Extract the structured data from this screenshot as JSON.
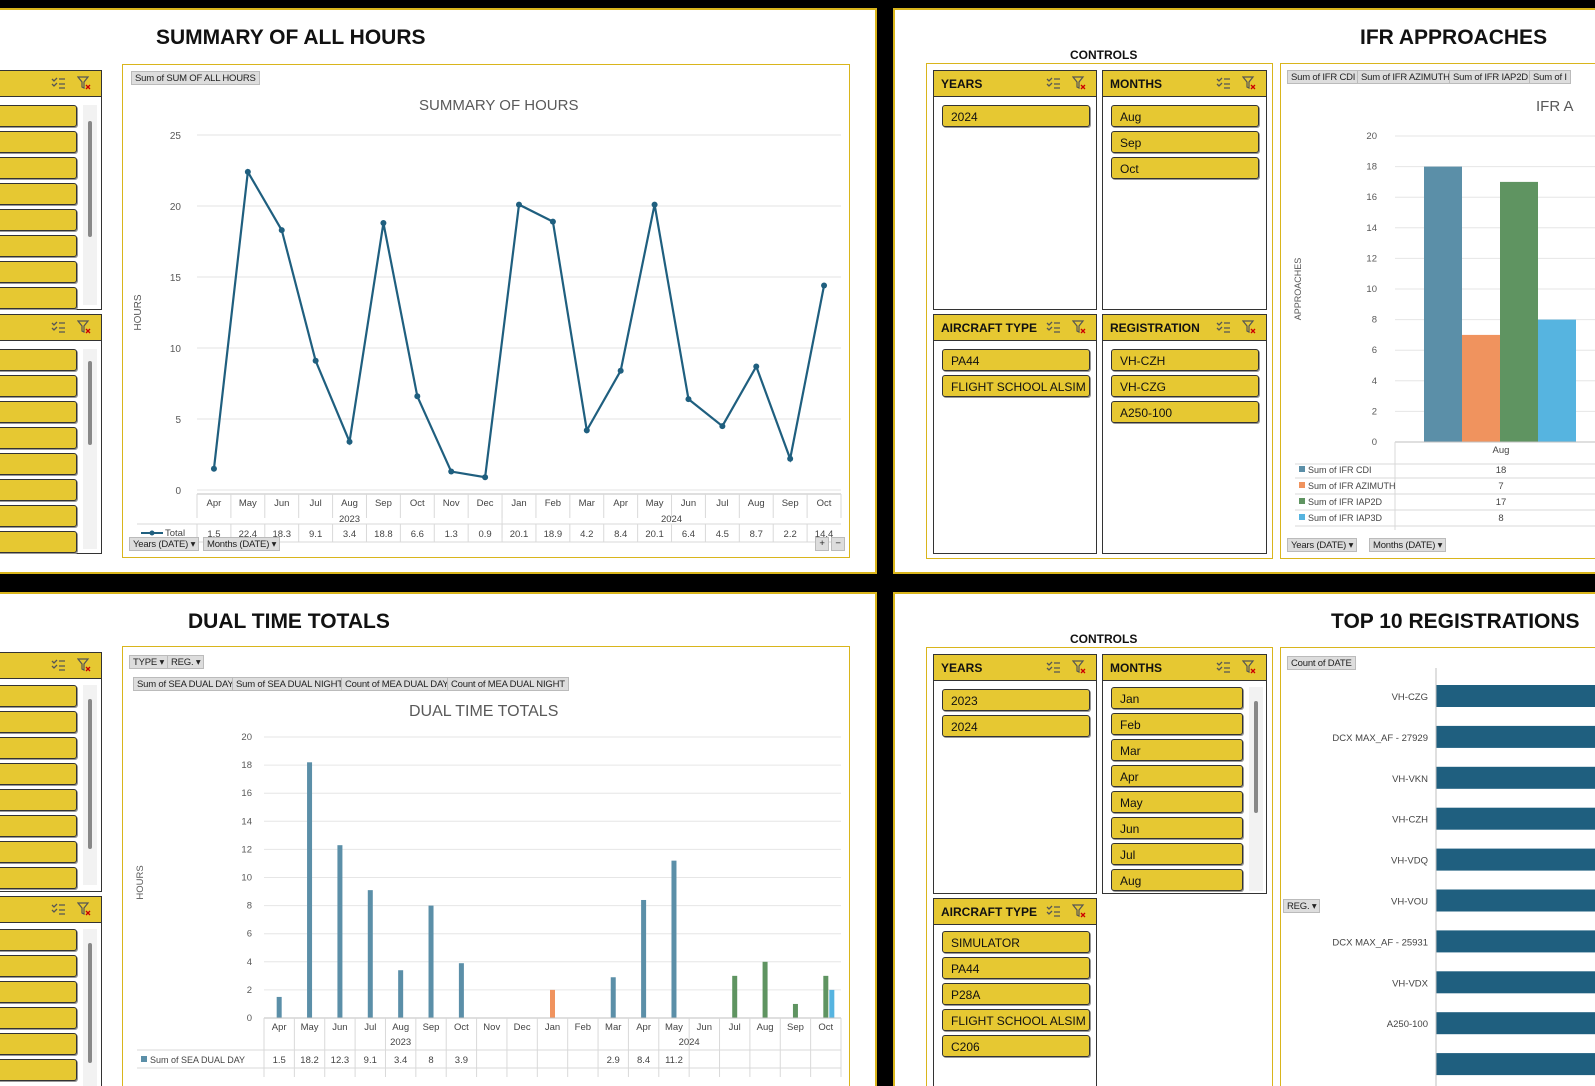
{
  "panels": {
    "summary": {
      "title": "SUMMARY OF ALL HOURS",
      "field_tag": "Sum of SUM OF ALL HOURS",
      "axis_buttons": [
        "Years (DATE)",
        "Months (DATE)"
      ]
    },
    "ifr": {
      "title": "IFR APPROACHES",
      "controls_label": "CONTROLS",
      "field_tags": [
        "Sum of IFR CDI",
        "Sum of IFR AZIMUTH",
        "Sum of IFR IAP2D",
        "Sum of I"
      ],
      "axis_buttons": [
        "Years (DATE)",
        "Months (DATE)"
      ],
      "slicers": {
        "years": {
          "label": "YEARS",
          "items": [
            "2024"
          ]
        },
        "months": {
          "label": "MONTHS",
          "items": [
            "Aug",
            "Sep",
            "Oct"
          ]
        },
        "aircraft": {
          "label": "AIRCRAFT TYPE",
          "items": [
            "PA44",
            "FLIGHT SCHOOL ALSIM"
          ]
        },
        "registration": {
          "label": "REGISTRATION",
          "items": [
            "VH-CZH",
            "VH-CZG",
            "A250-100"
          ]
        }
      }
    },
    "dual": {
      "title": "DUAL TIME TOTALS",
      "filter_buttons": [
        "TYPE",
        "REG."
      ],
      "field_tags": [
        "Sum of SEA DUAL DAY",
        "Sum of SEA DUAL NIGHT",
        "Count of MEA DUAL DAY",
        "Count of MEA DUAL NIGHT"
      ]
    },
    "top10": {
      "title": "TOP 10 REGISTRATIONS",
      "controls_label": "CONTROLS",
      "field_tag": "Count of DATE",
      "reg_button": "REG.",
      "slicers": {
        "years": {
          "label": "YEARS",
          "items": [
            "2023",
            "2024"
          ]
        },
        "months": {
          "label": "MONTHS",
          "items": [
            "Jan",
            "Feb",
            "Mar",
            "Apr",
            "May",
            "Jun",
            "Jul",
            "Aug"
          ]
        },
        "aircraft": {
          "label": "AIRCRAFT TYPE",
          "items": [
            "SIMULATOR",
            "PA44",
            "P28A",
            "FLIGHT SCHOOL ALSIM",
            "C206"
          ]
        }
      }
    }
  },
  "colors": {
    "accent": "#e6c832",
    "line": "#1f5f7f",
    "cdi": "#5b8fa8",
    "azimuth": "#f0935e",
    "iap2d": "#5f9461",
    "iap3d": "#56b4e0",
    "sea_day": "#5b8fa8",
    "bar_top10": "#1f5f7f"
  },
  "chart_data": [
    {
      "id": "summary",
      "type": "line",
      "title": "SUMMARY OF HOURS",
      "ylabel": "HOURS",
      "ylim": [
        0,
        25
      ],
      "yticks": [
        0,
        5,
        10,
        15,
        20,
        25
      ],
      "categories": [
        "Apr",
        "May",
        "Jun",
        "Jul",
        "Aug",
        "Sep",
        "Oct",
        "Nov",
        "Dec",
        "Jan",
        "Feb",
        "Mar",
        "Apr",
        "May",
        "Jun",
        "Jul",
        "Aug",
        "Sep",
        "Oct"
      ],
      "year_groups": [
        {
          "label": "2023",
          "count": 9
        },
        {
          "label": "2024",
          "count": 10
        }
      ],
      "series": [
        {
          "name": "Total",
          "values": [
            1.5,
            22.4,
            18.3,
            9.1,
            3.4,
            18.8,
            6.6,
            1.3,
            0.9,
            20.1,
            18.9,
            4.2,
            8.4,
            20.1,
            6.4,
            4.5,
            8.7,
            2.2,
            14.4
          ]
        }
      ]
    },
    {
      "id": "ifr",
      "type": "bar",
      "title": "IFR A",
      "ylabel": "APPROACHES",
      "ylim": [
        0,
        20
      ],
      "yticks": [
        0,
        2,
        4,
        6,
        8,
        10,
        12,
        14,
        16,
        18,
        20
      ],
      "categories": [
        "Aug"
      ],
      "series": [
        {
          "name": "Sum of IFR CDI",
          "values": [
            18
          ]
        },
        {
          "name": "Sum of IFR AZIMUTH",
          "values": [
            7
          ]
        },
        {
          "name": "Sum of IFR IAP2D",
          "values": [
            17
          ]
        },
        {
          "name": "Sum of IFR IAP3D",
          "values": [
            8
          ]
        }
      ]
    },
    {
      "id": "dual",
      "type": "bar",
      "title": "DUAL TIME TOTALS",
      "ylabel": "HOURS",
      "ylim": [
        0,
        20
      ],
      "yticks": [
        0,
        2,
        4,
        6,
        8,
        10,
        12,
        14,
        16,
        18,
        20
      ],
      "categories": [
        "Apr",
        "May",
        "Jun",
        "Jul",
        "Aug",
        "Sep",
        "Oct",
        "Nov",
        "Dec",
        "Jan",
        "Feb",
        "Mar",
        "Apr",
        "May",
        "Jun",
        "Jul",
        "Aug",
        "Sep",
        "Oct"
      ],
      "year_groups": [
        {
          "label": "2023",
          "count": 9
        },
        {
          "label": "2024",
          "count": 10
        }
      ],
      "series": [
        {
          "name": "Sum of SEA DUAL DAY",
          "values": [
            1.5,
            18.2,
            12.3,
            9.1,
            3.4,
            8,
            3.9,
            null,
            null,
            null,
            null,
            2.9,
            8.4,
            11.2,
            null,
            null,
            null,
            null,
            null
          ]
        },
        {
          "name": "Sum of SEA DUAL NIGHT",
          "values": [
            null,
            null,
            null,
            null,
            null,
            null,
            null,
            null,
            null,
            2,
            null,
            null,
            null,
            null,
            null,
            null,
            null,
            null,
            null
          ]
        },
        {
          "name": "Count of MEA DUAL DAY",
          "values": [
            null,
            null,
            null,
            null,
            null,
            null,
            null,
            null,
            null,
            null,
            null,
            null,
            null,
            null,
            null,
            3,
            4,
            1,
            3
          ]
        },
        {
          "name": "Count of MEA DUAL NIGHT",
          "values": [
            null,
            null,
            null,
            null,
            null,
            null,
            null,
            null,
            null,
            null,
            null,
            null,
            null,
            null,
            null,
            null,
            null,
            null,
            2
          ]
        }
      ]
    },
    {
      "id": "top10",
      "type": "bar",
      "orientation": "horizontal",
      "categories": [
        "VH-CZG",
        "DCX MAX_AF - 27929",
        "VH-VKN",
        "VH-CZH",
        "VH-VDQ",
        "VH-VOU",
        "DCX MAX_AF - 25931",
        "VH-VDX",
        "A250-100"
      ]
    }
  ]
}
